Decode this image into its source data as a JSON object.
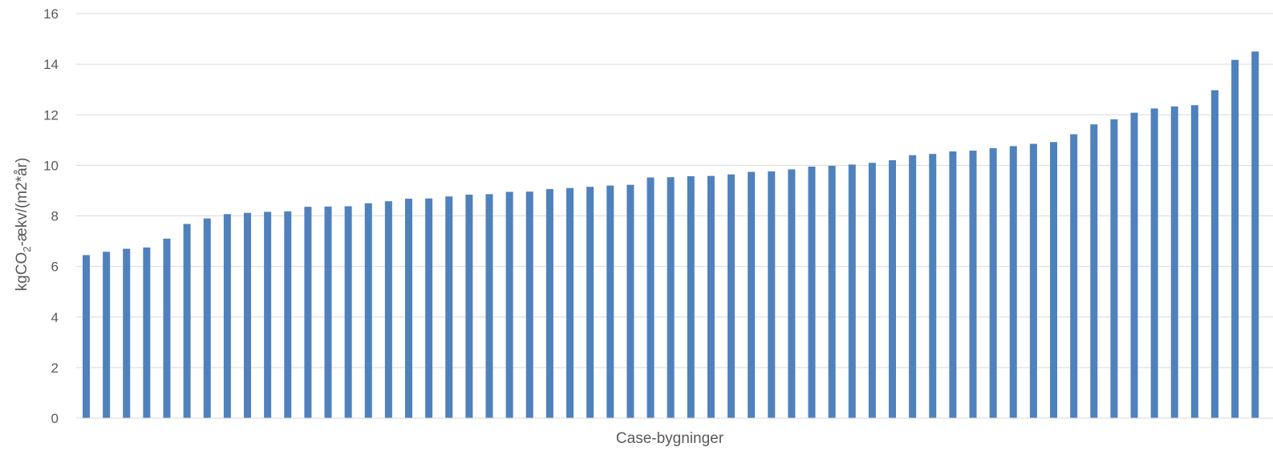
{
  "chart_data": {
    "type": "bar",
    "title": "",
    "xlabel": "Case-bygninger",
    "ylabel": {
      "prefix": "kgCO",
      "subscript": "2",
      "suffix": "-ækv/(m2*år)"
    },
    "ylim": [
      0,
      16
    ],
    "yticks": [
      "0",
      "2",
      "4",
      "6",
      "8",
      "10",
      "12",
      "14",
      "16"
    ],
    "grid": true,
    "legend": "none",
    "bar_color": "#4f81bd",
    "values": [
      6.45,
      6.58,
      6.7,
      6.75,
      7.1,
      7.68,
      7.9,
      8.07,
      8.12,
      8.16,
      8.18,
      8.36,
      8.37,
      8.38,
      8.5,
      8.58,
      8.68,
      8.69,
      8.77,
      8.84,
      8.86,
      8.95,
      8.96,
      9.06,
      9.1,
      9.15,
      9.2,
      9.23,
      9.52,
      9.53,
      9.57,
      9.58,
      9.64,
      9.74,
      9.76,
      9.84,
      9.95,
      9.98,
      10.03,
      10.1,
      10.2,
      10.4,
      10.45,
      10.55,
      10.58,
      10.68,
      10.76,
      10.85,
      10.92,
      11.23,
      11.62,
      11.82,
      12.08,
      12.25,
      12.33,
      12.38,
      12.97,
      14.17,
      14.5
    ]
  }
}
